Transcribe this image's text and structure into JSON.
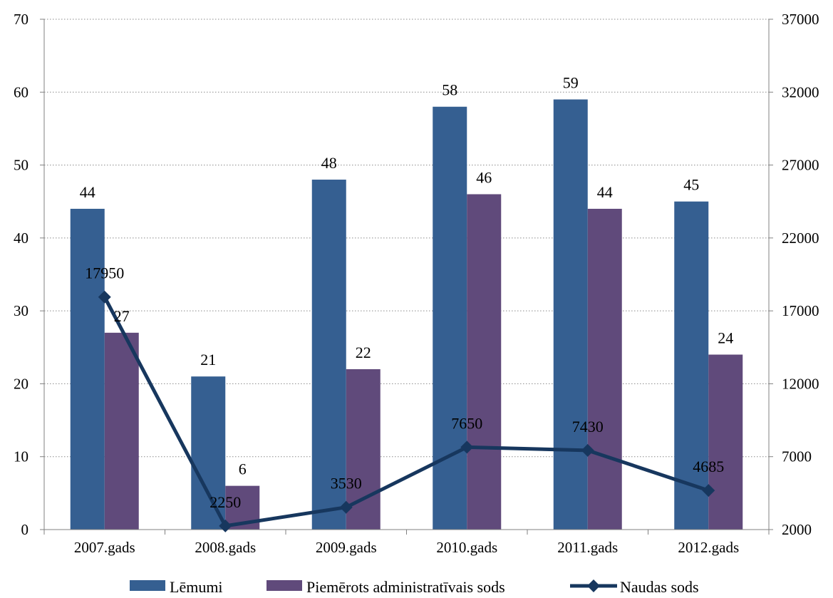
{
  "chart_data": {
    "type": "bar",
    "categories": [
      "2007.gads",
      "2008.gads",
      "2009.gads",
      "2010.gads",
      "2011.gads",
      "2012.gads"
    ],
    "series": [
      {
        "name": "Lēmumi",
        "type": "bar",
        "axis": "left",
        "color": "#355F91",
        "values": [
          44,
          21,
          48,
          58,
          59,
          45
        ]
      },
      {
        "name": "Piemērots administratīvais sods",
        "type": "bar",
        "axis": "left",
        "color": "#604A7B",
        "values": [
          27,
          6,
          22,
          46,
          44,
          24
        ]
      },
      {
        "name": "Naudas sods",
        "type": "line",
        "axis": "right",
        "color": "#17375E",
        "marker": "diamond",
        "values": [
          17950,
          2250,
          3530,
          7650,
          7430,
          4685
        ]
      }
    ],
    "y_left": {
      "min": 0,
      "max": 70,
      "ticks": [
        "0",
        "10",
        "20",
        "30",
        "40",
        "50",
        "60",
        "70"
      ]
    },
    "y_right": {
      "min": 2000,
      "max": 37000,
      "ticks": [
        "2000",
        "7000",
        "12000",
        "17000",
        "22000",
        "27000",
        "32000",
        "37000"
      ]
    },
    "grid": "horizontal-dotted",
    "legend_position": "bottom",
    "title": "",
    "xlabel": "",
    "ylabel": ""
  }
}
